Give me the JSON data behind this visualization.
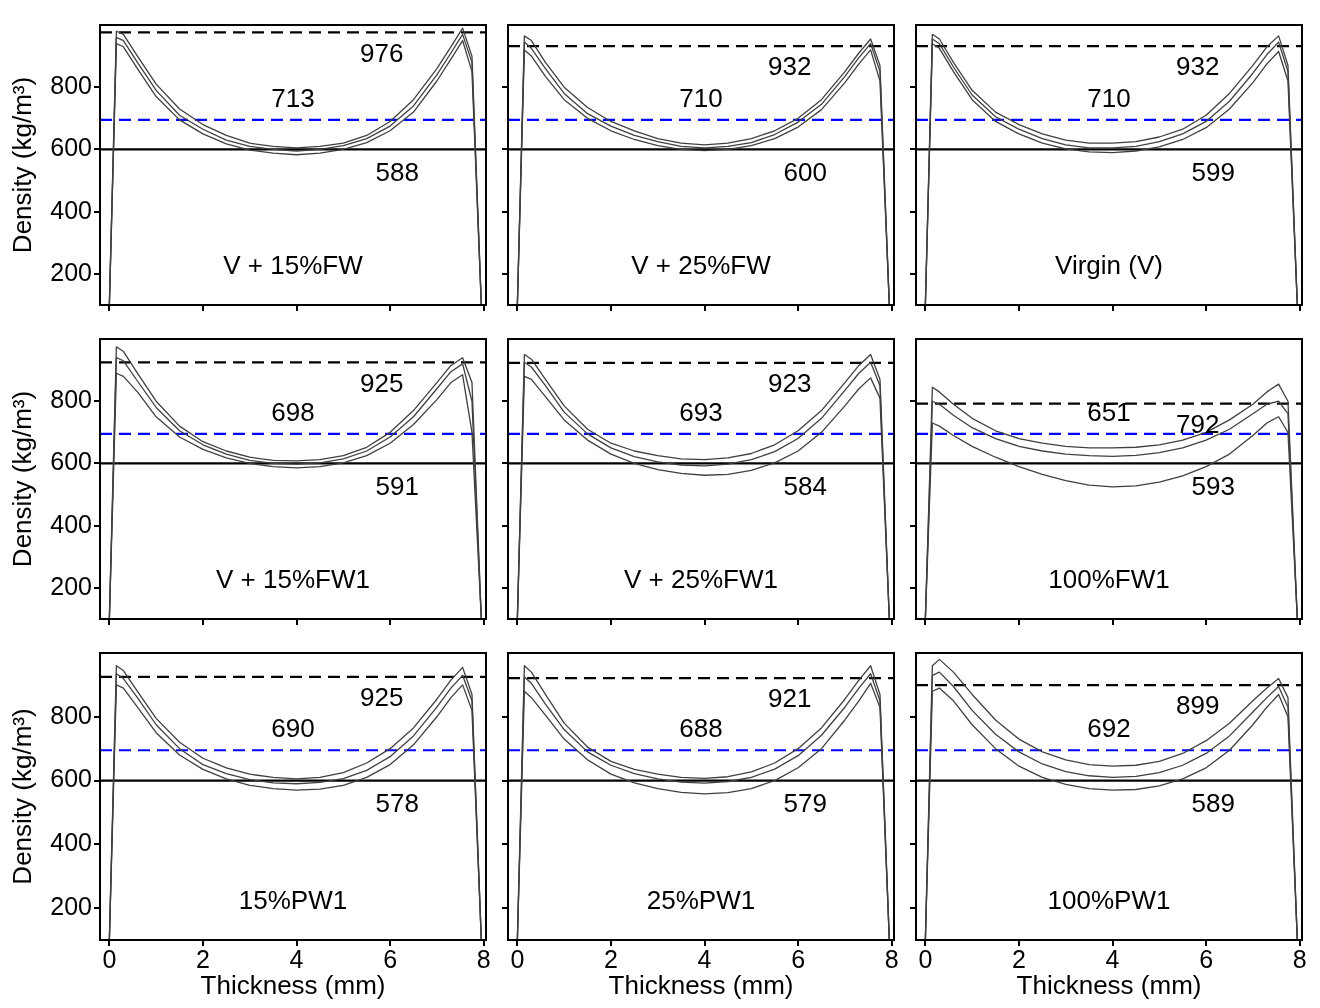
{
  "chart_data": [
    {
      "type": "line",
      "title": "V + 15%FW",
      "ylabel": "Density (kg/m³)",
      "tick_labels": "y",
      "marker": "none",
      "legend": false,
      "xlim": [
        -0.2,
        8.05
      ],
      "xticks": [
        0,
        2,
        4,
        6,
        8
      ],
      "ylim": [
        100,
        1000
      ],
      "yticks": [
        200,
        400,
        600,
        800
      ],
      "x": [
        0,
        0.15,
        0.3,
        0.6,
        1,
        1.5,
        2,
        2.5,
        3,
        3.5,
        4,
        4.5,
        5,
        5.5,
        6,
        6.5,
        7,
        7.3,
        7.55,
        7.75,
        7.95
      ],
      "series": [
        {
          "color": "#404040",
          "values": [
            100,
            980,
            970,
            900,
            810,
            730,
            680,
            645,
            620,
            610,
            605,
            610,
            620,
            645,
            690,
            760,
            860,
            930,
            990,
            900,
            100
          ]
        },
        {
          "color": "#404040",
          "values": [
            100,
            960,
            950,
            880,
            790,
            710,
            665,
            630,
            610,
            600,
            595,
            600,
            612,
            635,
            675,
            740,
            840,
            910,
            970,
            880,
            100
          ]
        },
        {
          "color": "#404040",
          "values": [
            100,
            940,
            930,
            860,
            770,
            695,
            650,
            618,
            598,
            588,
            583,
            588,
            600,
            622,
            660,
            720,
            820,
            890,
            950,
            850,
            100
          ]
        }
      ],
      "ref_lines": [
        {
          "axis": "y",
          "value": 976,
          "color": "#000000",
          "line_style": "dashed"
        },
        {
          "axis": "y",
          "value": 695,
          "color": "#0000ff",
          "line_style": "dashed"
        },
        {
          "axis": "y",
          "value": 600,
          "color": "#000000",
          "line_style": "solid"
        }
      ],
      "annotations": [
        "976",
        "713",
        "588"
      ]
    },
    {
      "type": "line",
      "title": "V + 25%FW",
      "tick_labels": false,
      "marker": "none",
      "legend": false,
      "xlim": [
        -0.2,
        8.05
      ],
      "xticks": [
        0,
        2,
        4,
        6,
        8
      ],
      "ylim": [
        100,
        1000
      ],
      "yticks": [
        200,
        400,
        600,
        800
      ],
      "x": [
        0,
        0.15,
        0.3,
        0.6,
        1,
        1.5,
        2,
        2.5,
        3,
        3.5,
        4,
        4.5,
        5,
        5.5,
        6,
        6.5,
        7,
        7.3,
        7.55,
        7.75,
        7.95
      ],
      "series": [
        {
          "color": "#404040",
          "values": [
            100,
            965,
            950,
            880,
            800,
            735,
            690,
            660,
            635,
            620,
            615,
            620,
            635,
            660,
            700,
            760,
            850,
            910,
            955,
            870,
            100
          ]
        },
        {
          "color": "#404040",
          "values": [
            100,
            945,
            925,
            860,
            780,
            715,
            675,
            645,
            625,
            610,
            605,
            610,
            622,
            648,
            688,
            745,
            835,
            895,
            940,
            850,
            100
          ]
        },
        {
          "color": "#404040",
          "values": [
            100,
            920,
            900,
            835,
            760,
            700,
            660,
            632,
            612,
            600,
            596,
            600,
            612,
            635,
            672,
            728,
            815,
            875,
            920,
            820,
            100
          ]
        }
      ],
      "ref_lines": [
        {
          "axis": "y",
          "value": 932,
          "color": "#000000",
          "line_style": "dashed"
        },
        {
          "axis": "y",
          "value": 695,
          "color": "#0000ff",
          "line_style": "dashed"
        },
        {
          "axis": "y",
          "value": 600,
          "color": "#000000",
          "line_style": "solid"
        }
      ],
      "annotations": [
        "932",
        "710",
        "600"
      ]
    },
    {
      "type": "line",
      "title": "Virgin (V)",
      "tick_labels": false,
      "marker": "none",
      "legend": false,
      "xlim": [
        -0.2,
        8.05
      ],
      "xticks": [
        0,
        2,
        4,
        6,
        8
      ],
      "ylim": [
        100,
        1000
      ],
      "yticks": [
        200,
        400,
        600,
        800
      ],
      "x": [
        0,
        0.15,
        0.3,
        0.6,
        1,
        1.5,
        2,
        2.5,
        3,
        3.5,
        4,
        4.5,
        5,
        5.5,
        6,
        6.5,
        7,
        7.3,
        7.55,
        7.75,
        7.95
      ],
      "series": [
        {
          "color": "#404040",
          "values": [
            100,
            970,
            955,
            880,
            790,
            720,
            680,
            650,
            630,
            620,
            620,
            625,
            640,
            665,
            710,
            780,
            870,
            930,
            965,
            870,
            100
          ]
        },
        {
          "color": "#404040",
          "values": [
            100,
            955,
            940,
            865,
            775,
            705,
            665,
            635,
            615,
            605,
            605,
            610,
            625,
            650,
            690,
            755,
            845,
            905,
            945,
            850,
            100
          ]
        },
        {
          "color": "#404040",
          "values": [
            100,
            940,
            925,
            850,
            760,
            690,
            650,
            620,
            602,
            592,
            590,
            595,
            608,
            632,
            670,
            730,
            815,
            875,
            915,
            820,
            100
          ]
        }
      ],
      "ref_lines": [
        {
          "axis": "y",
          "value": 932,
          "color": "#000000",
          "line_style": "dashed"
        },
        {
          "axis": "y",
          "value": 695,
          "color": "#0000ff",
          "line_style": "dashed"
        },
        {
          "axis": "y",
          "value": 600,
          "color": "#000000",
          "line_style": "solid"
        }
      ],
      "annotations": [
        "932",
        "710",
        "599"
      ]
    },
    {
      "type": "line",
      "title": "V + 15%FW1",
      "ylabel": "Density (kg/m³)",
      "tick_labels": "y",
      "marker": "none",
      "legend": false,
      "xlim": [
        -0.2,
        8.05
      ],
      "xticks": [
        0,
        2,
        4,
        6,
        8
      ],
      "ylim": [
        100,
        1000
      ],
      "yticks": [
        200,
        400,
        600,
        800
      ],
      "x": [
        0,
        0.15,
        0.3,
        0.6,
        1,
        1.5,
        2,
        2.5,
        3,
        3.5,
        4,
        4.5,
        5,
        5.5,
        6,
        6.5,
        7,
        7.3,
        7.55,
        7.75,
        7.95
      ],
      "series": [
        {
          "color": "#404040",
          "values": [
            100,
            975,
            960,
            890,
            800,
            720,
            670,
            640,
            620,
            610,
            608,
            612,
            625,
            652,
            700,
            770,
            860,
            915,
            940,
            860,
            100
          ]
        },
        {
          "color": "#404040",
          "values": [
            100,
            940,
            930,
            865,
            780,
            705,
            660,
            630,
            610,
            600,
            598,
            602,
            615,
            640,
            685,
            750,
            840,
            895,
            920,
            800,
            100
          ]
        },
        {
          "color": "#404040",
          "values": [
            100,
            890,
            880,
            830,
            750,
            685,
            645,
            618,
            600,
            590,
            586,
            590,
            602,
            625,
            665,
            725,
            805,
            860,
            885,
            700,
            100
          ]
        }
      ],
      "ref_lines": [
        {
          "axis": "y",
          "value": 925,
          "color": "#000000",
          "line_style": "dashed"
        },
        {
          "axis": "y",
          "value": 695,
          "color": "#0000ff",
          "line_style": "dashed"
        },
        {
          "axis": "y",
          "value": 600,
          "color": "#000000",
          "line_style": "solid"
        }
      ],
      "annotations": [
        "925",
        "698",
        "591"
      ]
    },
    {
      "type": "line",
      "title": "V + 25%FW1",
      "tick_labels": false,
      "marker": "none",
      "legend": false,
      "xlim": [
        -0.2,
        8.05
      ],
      "xticks": [
        0,
        2,
        4,
        6,
        8
      ],
      "ylim": [
        100,
        1000
      ],
      "yticks": [
        200,
        400,
        600,
        800
      ],
      "x": [
        0,
        0.15,
        0.3,
        0.6,
        1,
        1.5,
        2,
        2.5,
        3,
        3.5,
        4,
        4.5,
        5,
        5.5,
        6,
        6.5,
        7,
        7.3,
        7.55,
        7.75,
        7.95
      ],
      "series": [
        {
          "color": "#404040",
          "values": [
            100,
            950,
            935,
            870,
            785,
            710,
            665,
            640,
            625,
            615,
            612,
            618,
            632,
            660,
            705,
            770,
            860,
            915,
            950,
            870,
            100
          ]
        },
        {
          "color": "#404040",
          "values": [
            100,
            925,
            910,
            850,
            765,
            695,
            650,
            622,
            605,
            595,
            592,
            598,
            612,
            638,
            680,
            745,
            835,
            890,
            925,
            850,
            100
          ]
        },
        {
          "color": "#404040",
          "values": [
            100,
            880,
            870,
            815,
            740,
            675,
            630,
            600,
            580,
            568,
            562,
            565,
            578,
            602,
            640,
            700,
            785,
            840,
            875,
            810,
            100
          ]
        }
      ],
      "ref_lines": [
        {
          "axis": "y",
          "value": 923,
          "color": "#000000",
          "line_style": "dashed"
        },
        {
          "axis": "y",
          "value": 695,
          "color": "#0000ff",
          "line_style": "dashed"
        },
        {
          "axis": "y",
          "value": 600,
          "color": "#000000",
          "line_style": "solid"
        }
      ],
      "annotations": [
        "923",
        "693",
        "584"
      ]
    },
    {
      "type": "line",
      "title": "100%FW1",
      "tick_labels": false,
      "marker": "none",
      "legend": false,
      "xlim": [
        -0.2,
        8.05
      ],
      "xticks": [
        0,
        2,
        4,
        6,
        8
      ],
      "ylim": [
        100,
        1000
      ],
      "yticks": [
        200,
        400,
        600,
        800
      ],
      "x": [
        0,
        0.15,
        0.3,
        0.6,
        1,
        1.5,
        2,
        2.5,
        3,
        3.5,
        4,
        4.5,
        5,
        5.5,
        6,
        6.5,
        7,
        7.3,
        7.55,
        7.75,
        7.95
      ],
      "series": [
        {
          "color": "#404040",
          "values": [
            100,
            845,
            830,
            790,
            745,
            705,
            680,
            665,
            655,
            650,
            650,
            652,
            660,
            675,
            700,
            740,
            790,
            830,
            855,
            800,
            100
          ]
        },
        {
          "color": "#404040",
          "values": [
            100,
            800,
            790,
            755,
            715,
            680,
            655,
            640,
            630,
            625,
            623,
            626,
            635,
            650,
            675,
            710,
            760,
            790,
            800,
            760,
            100
          ]
        },
        {
          "color": "#404040",
          "values": [
            100,
            730,
            720,
            690,
            655,
            620,
            590,
            565,
            545,
            530,
            525,
            528,
            540,
            560,
            590,
            630,
            690,
            730,
            750,
            700,
            100
          ]
        }
      ],
      "ref_lines": [
        {
          "axis": "y",
          "value": 792,
          "color": "#000000",
          "line_style": "dashed"
        },
        {
          "axis": "y",
          "value": 695,
          "color": "#0000ff",
          "line_style": "dashed"
        },
        {
          "axis": "y",
          "value": 600,
          "color": "#000000",
          "line_style": "solid"
        }
      ],
      "annotations": [
        "792",
        "651",
        "593"
      ]
    },
    {
      "type": "line",
      "title": "15%PW1",
      "xlabel": "Thickness (mm)",
      "ylabel": "Density (kg/m³)",
      "marker": "none",
      "legend": false,
      "xlim": [
        -0.2,
        8.05
      ],
      "xticks": [
        0,
        2,
        4,
        6,
        8
      ],
      "ylim": [
        100,
        1000
      ],
      "yticks": [
        200,
        400,
        600,
        800
      ],
      "x": [
        0,
        0.15,
        0.3,
        0.6,
        1,
        1.5,
        2,
        2.5,
        3,
        3.5,
        4,
        4.5,
        5,
        5.5,
        6,
        6.5,
        7,
        7.3,
        7.55,
        7.75,
        7.95
      ],
      "series": [
        {
          "color": "#404040",
          "values": [
            100,
            960,
            945,
            880,
            795,
            720,
            670,
            640,
            620,
            610,
            605,
            610,
            625,
            655,
            700,
            765,
            855,
            915,
            955,
            870,
            100
          ]
        },
        {
          "color": "#404040",
          "values": [
            100,
            935,
            920,
            860,
            775,
            700,
            650,
            622,
            603,
            593,
            590,
            594,
            606,
            632,
            675,
            740,
            830,
            890,
            930,
            850,
            100
          ]
        },
        {
          "color": "#404040",
          "values": [
            100,
            900,
            890,
            830,
            750,
            680,
            635,
            605,
            585,
            575,
            570,
            573,
            585,
            610,
            650,
            712,
            800,
            860,
            900,
            820,
            100
          ]
        }
      ],
      "ref_lines": [
        {
          "axis": "y",
          "value": 925,
          "color": "#000000",
          "line_style": "dashed"
        },
        {
          "axis": "y",
          "value": 695,
          "color": "#0000ff",
          "line_style": "dashed"
        },
        {
          "axis": "y",
          "value": 600,
          "color": "#000000",
          "line_style": "solid"
        }
      ],
      "annotations": [
        "925",
        "690",
        "578"
      ]
    },
    {
      "type": "line",
      "title": "25%PW1",
      "xlabel": "Thickness (mm)",
      "tick_labels": "x",
      "marker": "none",
      "legend": false,
      "xlim": [
        -0.2,
        8.05
      ],
      "xticks": [
        0,
        2,
        4,
        6,
        8
      ],
      "ylim": [
        100,
        1000
      ],
      "yticks": [
        200,
        400,
        600,
        800
      ],
      "x": [
        0,
        0.15,
        0.3,
        0.6,
        1,
        1.5,
        2,
        2.5,
        3,
        3.5,
        4,
        4.5,
        5,
        5.5,
        6,
        6.5,
        7,
        7.3,
        7.55,
        7.75,
        7.95
      ],
      "series": [
        {
          "color": "#404040",
          "values": [
            100,
            960,
            940,
            870,
            780,
            705,
            660,
            635,
            620,
            610,
            607,
            612,
            627,
            655,
            700,
            765,
            855,
            915,
            960,
            870,
            100
          ]
        },
        {
          "color": "#404040",
          "values": [
            100,
            925,
            905,
            840,
            760,
            690,
            648,
            622,
            605,
            595,
            592,
            597,
            610,
            636,
            678,
            742,
            830,
            890,
            935,
            850,
            100
          ]
        },
        {
          "color": "#404040",
          "values": [
            100,
            880,
            860,
            805,
            730,
            665,
            620,
            593,
            575,
            563,
            558,
            562,
            575,
            600,
            640,
            700,
            790,
            850,
            905,
            830,
            100
          ]
        }
      ],
      "ref_lines": [
        {
          "axis": "y",
          "value": 921,
          "color": "#000000",
          "line_style": "dashed"
        },
        {
          "axis": "y",
          "value": 695,
          "color": "#0000ff",
          "line_style": "dashed"
        },
        {
          "axis": "y",
          "value": 600,
          "color": "#000000",
          "line_style": "solid"
        }
      ],
      "annotations": [
        "921",
        "688",
        "579"
      ]
    },
    {
      "type": "line",
      "title": "100%PW1",
      "xlabel": "Thickness (mm)",
      "tick_labels": "x",
      "marker": "none",
      "legend": false,
      "xlim": [
        -0.2,
        8.05
      ],
      "xticks": [
        0,
        2,
        4,
        6,
        8
      ],
      "ylim": [
        100,
        1000
      ],
      "yticks": [
        200,
        400,
        600,
        800
      ],
      "x": [
        0,
        0.15,
        0.3,
        0.6,
        1,
        1.5,
        2,
        2.5,
        3,
        3.5,
        4,
        4.5,
        5,
        5.5,
        6,
        6.5,
        7,
        7.3,
        7.55,
        7.75,
        7.95
      ],
      "series": [
        {
          "color": "#404040",
          "values": [
            100,
            960,
            980,
            940,
            870,
            790,
            730,
            690,
            665,
            650,
            645,
            648,
            660,
            685,
            725,
            780,
            850,
            890,
            920,
            860,
            100
          ]
        },
        {
          "color": "#404040",
          "values": [
            100,
            930,
            940,
            895,
            820,
            745,
            690,
            652,
            628,
            615,
            610,
            613,
            625,
            648,
            685,
            740,
            815,
            860,
            895,
            830,
            100
          ]
        },
        {
          "color": "#404040",
          "values": [
            100,
            880,
            890,
            850,
            775,
            700,
            645,
            610,
            588,
            575,
            570,
            572,
            583,
            605,
            640,
            695,
            775,
            830,
            870,
            800,
            100
          ]
        }
      ],
      "ref_lines": [
        {
          "axis": "y",
          "value": 899,
          "color": "#000000",
          "line_style": "dashed"
        },
        {
          "axis": "y",
          "value": 695,
          "color": "#0000ff",
          "line_style": "dashed"
        },
        {
          "axis": "y",
          "value": 600,
          "color": "#000000",
          "line_style": "solid"
        }
      ],
      "annotations": [
        "899",
        "692",
        "589"
      ]
    }
  ]
}
